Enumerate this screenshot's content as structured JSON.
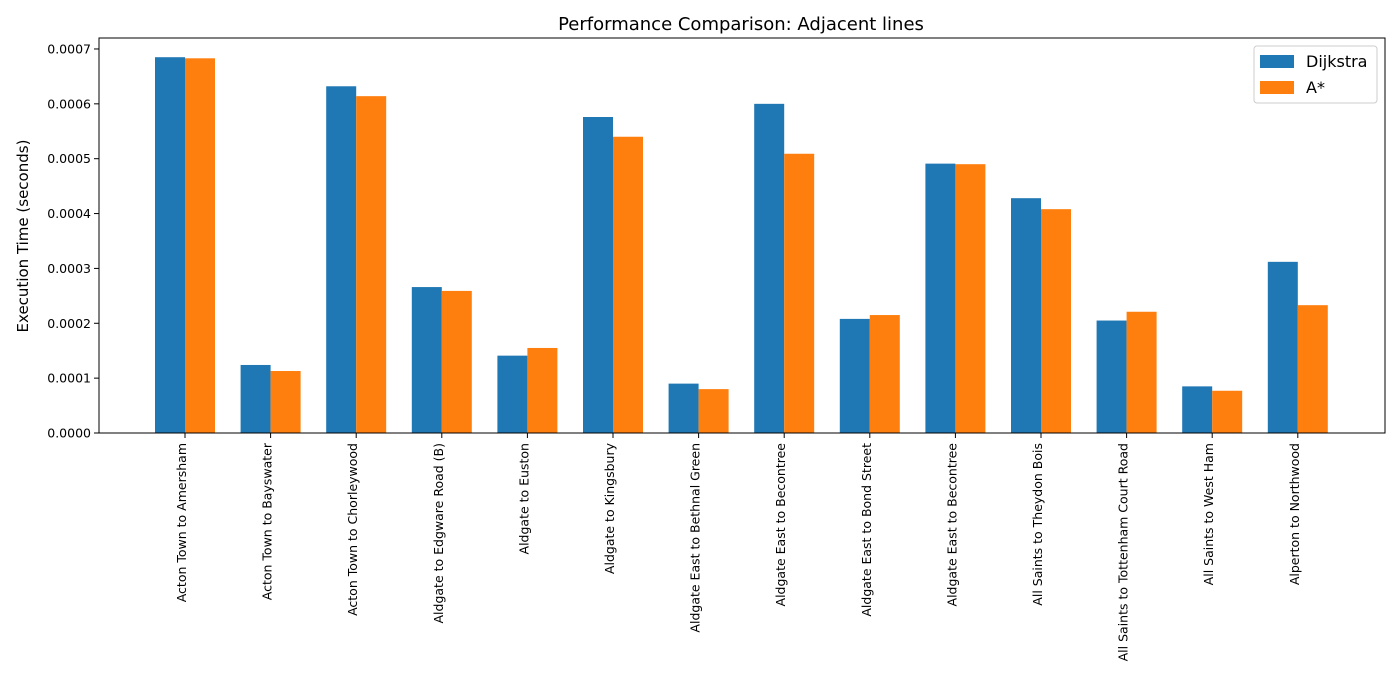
{
  "chart_data": {
    "type": "bar",
    "title": "Performance Comparison: Adjacent lines",
    "xlabel": "",
    "ylabel": "Execution Time (seconds)",
    "ylim": [
      0,
      0.00072
    ],
    "yticks": [
      "0.0000",
      "0.0001",
      "0.0002",
      "0.0003",
      "0.0004",
      "0.0005",
      "0.0006",
      "0.0007"
    ],
    "ytick_values": [
      0,
      0.0001,
      0.0002,
      0.0003,
      0.0004,
      0.0005,
      0.0006,
      0.0007
    ],
    "grid": false,
    "legend_position": "top-right",
    "categories": [
      "Acton Town to Amersham",
      "Acton Town to Bayswater",
      "Acton Town to Chorleywood",
      "Aldgate to Edgware Road (B)",
      "Aldgate to Euston",
      "Aldgate to Kingsbury",
      "Aldgate East to Bethnal Green",
      "Aldgate East to Becontree",
      "Aldgate East to Bond Street",
      "Aldgate East to Becontree",
      "All Saints to Theydon Bois",
      "All Saints to Tottenham Court Road",
      "All Saints to West Ham",
      "Alperton to Northwood"
    ],
    "series": [
      {
        "name": "Dijkstra",
        "color": "#1f77b4",
        "values": [
          0.000685,
          0.000124,
          0.000632,
          0.000266,
          0.000141,
          0.000576,
          9e-05,
          0.0006,
          0.000208,
          0.000491,
          0.000428,
          0.000205,
          8.5e-05,
          0.000312
        ]
      },
      {
        "name": "A*",
        "color": "#ff7f0e",
        "values": [
          0.000683,
          0.000113,
          0.000614,
          0.000259,
          0.000155,
          0.00054,
          8e-05,
          0.000509,
          0.000215,
          0.00049,
          0.000408,
          0.000221,
          7.7e-05,
          0.000233
        ]
      }
    ]
  }
}
